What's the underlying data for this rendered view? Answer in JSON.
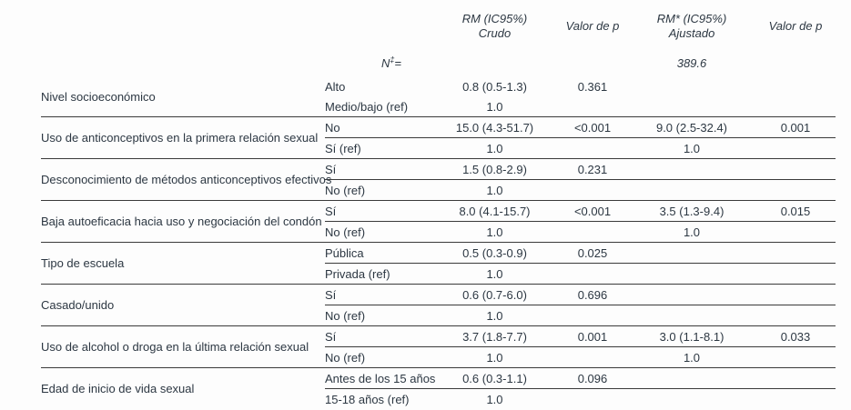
{
  "table": {
    "columns": {
      "rm_crudo": {
        "line1": "RM (IC95%)",
        "line2": "Crudo"
      },
      "p_crudo": "Valor de p",
      "rm_ajustado": {
        "line1": "RM* (IC95%)",
        "line2": "Ajustado"
      },
      "p_ajustado": "Valor de p"
    },
    "n_row": {
      "label": "N",
      "sup": "‡",
      "eq": "=",
      "value": "389.6"
    },
    "groups": [
      {
        "variable": "Nivel socioeconómico",
        "rows": [
          {
            "category": "Alto",
            "rm_crudo": "0.8 (0.5-1.3)",
            "p_crudo": "0.361",
            "rm_ajustado": "",
            "p_ajustado": ""
          },
          {
            "category": "Medio/bajo (ref)",
            "rm_crudo": "1.0",
            "p_crudo": "",
            "rm_ajustado": "",
            "p_ajustado": ""
          }
        ]
      },
      {
        "variable": "Uso de anticonceptivos en la primera relación sexual",
        "rows": [
          {
            "category": "No",
            "rm_crudo": "15.0 (4.3-51.7)",
            "p_crudo": "<0.001",
            "rm_ajustado": "9.0 (2.5-32.4)",
            "p_ajustado": "0.001"
          },
          {
            "category": "Sí (ref)",
            "rm_crudo": "1.0",
            "p_crudo": "",
            "rm_ajustado": "1.0",
            "p_ajustado": ""
          }
        ]
      },
      {
        "variable": "Desconocimiento de métodos anticonceptivos efectivos",
        "rows": [
          {
            "category": "Sí",
            "rm_crudo": "1.5 (0.8-2.9)",
            "p_crudo": "0.231",
            "rm_ajustado": "",
            "p_ajustado": ""
          },
          {
            "category": "No (ref)",
            "rm_crudo": "1.0",
            "p_crudo": "",
            "rm_ajustado": "",
            "p_ajustado": ""
          }
        ]
      },
      {
        "variable": "Baja autoeficacia hacia uso y negociación del condón",
        "rows": [
          {
            "category": "Sí",
            "rm_crudo": "8.0 (4.1-15.7)",
            "p_crudo": "<0.001",
            "rm_ajustado": "3.5 (1.3-9.4)",
            "p_ajustado": "0.015"
          },
          {
            "category": "No (ref)",
            "rm_crudo": "1.0",
            "p_crudo": "",
            "rm_ajustado": "1.0",
            "p_ajustado": ""
          }
        ]
      },
      {
        "variable": "Tipo de escuela",
        "rows": [
          {
            "category": "Pública",
            "rm_crudo": "0.5 (0.3-0.9)",
            "p_crudo": "0.025",
            "rm_ajustado": "",
            "p_ajustado": ""
          },
          {
            "category": "Privada (ref)",
            "rm_crudo": "1.0",
            "p_crudo": "",
            "rm_ajustado": "",
            "p_ajustado": ""
          }
        ]
      },
      {
        "variable": "Casado/unido",
        "rows": [
          {
            "category": "Sí",
            "rm_crudo": "0.6 (0.7-6.0)",
            "p_crudo": "0.696",
            "rm_ajustado": "",
            "p_ajustado": ""
          },
          {
            "category": "No (ref)",
            "rm_crudo": "1.0",
            "p_crudo": "",
            "rm_ajustado": "",
            "p_ajustado": ""
          }
        ]
      },
      {
        "variable": "Uso de alcohol o droga  en la última relación sexual",
        "rows": [
          {
            "category": "Sí",
            "rm_crudo": "3.7 (1.8-7.7)",
            "p_crudo": "0.001",
            "rm_ajustado": "3.0 (1.1-8.1)",
            "p_ajustado": "0.033"
          },
          {
            "category": "No (ref)",
            "rm_crudo": "1.0",
            "p_crudo": "",
            "rm_ajustado": "1.0",
            "p_ajustado": ""
          }
        ]
      },
      {
        "variable": "Edad de inicio de vida sexual",
        "rows": [
          {
            "category": "Antes de los 15 años",
            "rm_crudo": "0.6 (0.3-1.1)",
            "p_crudo": "0.096",
            "rm_ajustado": "",
            "p_ajustado": ""
          },
          {
            "category": "15-18 años (ref)",
            "rm_crudo": "1.0",
            "p_crudo": "",
            "rm_ajustado": "",
            "p_ajustado": ""
          }
        ]
      }
    ]
  }
}
